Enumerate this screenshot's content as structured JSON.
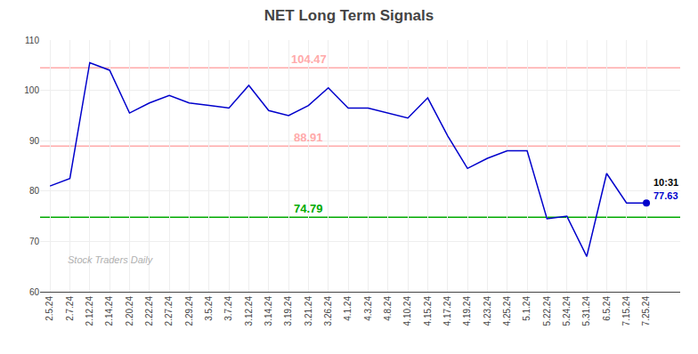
{
  "chart_data": {
    "type": "line",
    "title": "NET Long Term Signals",
    "categories": [
      "2.5.24",
      "2.7.24",
      "2.12.24",
      "2.14.24",
      "2.20.24",
      "2.22.24",
      "2.27.24",
      "2.29.24",
      "3.5.24",
      "3.7.24",
      "3.12.24",
      "3.14.24",
      "3.19.24",
      "3.21.24",
      "3.26.24",
      "4.1.24",
      "4.3.24",
      "4.8.24",
      "4.10.24",
      "4.15.24",
      "4.17.24",
      "4.19.24",
      "4.23.24",
      "4.25.24",
      "5.1.24",
      "5.22.24",
      "5.24.24",
      "5.31.24",
      "6.5.24",
      "7.15.24",
      "7.25.24"
    ],
    "series": [
      {
        "name": "NET",
        "color": "#0000cc",
        "values": [
          81.0,
          82.5,
          105.5,
          104.0,
          95.5,
          97.5,
          99.0,
          97.5,
          97.0,
          96.5,
          101.0,
          96.0,
          95.0,
          97.0,
          100.5,
          96.5,
          96.5,
          95.5,
          94.5,
          98.5,
          91.0,
          84.5,
          86.5,
          88.0,
          88.0,
          74.5,
          75.0,
          67.0,
          83.5,
          77.63,
          77.63
        ]
      }
    ],
    "hlines": [
      {
        "value": 104.47,
        "color": "#ffaaaa"
      },
      {
        "value": 88.91,
        "color": "#ffaaaa"
      },
      {
        "value": 74.79,
        "color": "#00aa00"
      }
    ],
    "annotations": [
      "10:31",
      "Stock Traders Daily"
    ],
    "ylim": [
      60,
      110
    ],
    "yticks": [
      60,
      70,
      80,
      90,
      100,
      110
    ],
    "grid": true
  }
}
